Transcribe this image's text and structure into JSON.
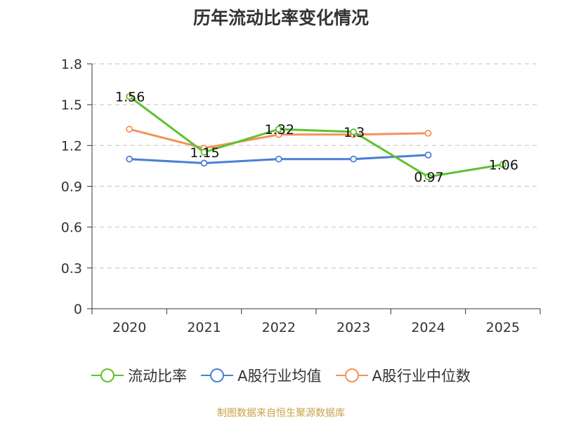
{
  "chart_data": {
    "type": "line",
    "title": "历年流动比率变化情况",
    "categories": [
      "2020",
      "2021",
      "2022",
      "2023",
      "2024",
      "2025"
    ],
    "y_ticks": [
      "0",
      "0.3",
      "0.6",
      "0.9",
      "1.2",
      "1.5",
      "1.8"
    ],
    "ylim": [
      0,
      1.8
    ],
    "grid": true,
    "legend_position": "bottom",
    "series": [
      {
        "name": "流动比率",
        "color": "#5ec22e",
        "values": [
          1.56,
          1.15,
          1.32,
          1.3,
          0.97,
          1.06
        ],
        "labels": [
          "1.56",
          "1.15",
          "1.32",
          "1.3",
          "0.97",
          "1.06"
        ]
      },
      {
        "name": "A股行业均值",
        "color": "#4a7fd6",
        "values": [
          1.1,
          1.07,
          1.1,
          1.1,
          1.13,
          null
        ]
      },
      {
        "name": "A股行业中位数",
        "color": "#f5915a",
        "values": [
          1.32,
          1.18,
          1.28,
          1.28,
          1.29,
          null
        ]
      }
    ],
    "source": "制图数据来自恒生聚源数据库"
  }
}
